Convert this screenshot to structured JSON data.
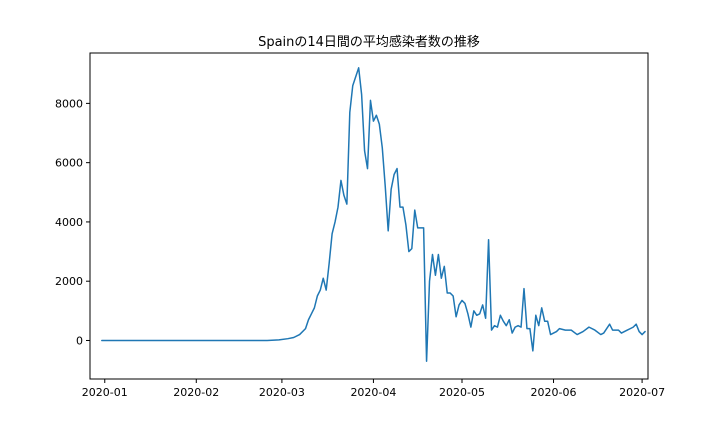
{
  "chart_data": {
    "type": "line",
    "title": "Spainの14日間の平均感染者数の推移",
    "xlabel": "",
    "ylabel": "",
    "xlim": [
      "2019-12-27",
      "2020-07-03"
    ],
    "ylim": [
      -1300,
      9700
    ],
    "grid": false,
    "legend": "none",
    "x_ticks": [
      {
        "date": "2020-01-01",
        "label": "2020-01"
      },
      {
        "date": "2020-02-01",
        "label": "2020-02"
      },
      {
        "date": "2020-03-01",
        "label": "2020-03"
      },
      {
        "date": "2020-04-01",
        "label": "2020-04"
      },
      {
        "date": "2020-05-01",
        "label": "2020-05"
      },
      {
        "date": "2020-06-01",
        "label": "2020-06"
      },
      {
        "date": "2020-07-01",
        "label": "2020-07"
      }
    ],
    "y_ticks": [
      0,
      2000,
      4000,
      6000,
      8000
    ],
    "series": [
      {
        "color": "#1f77b4",
        "points": [
          [
            "2019-12-31",
            0
          ],
          [
            "2020-01-15",
            0
          ],
          [
            "2020-02-01",
            0
          ],
          [
            "2020-02-15",
            0
          ],
          [
            "2020-02-25",
            0
          ],
          [
            "2020-02-29",
            20
          ],
          [
            "2020-03-03",
            60
          ],
          [
            "2020-03-05",
            100
          ],
          [
            "2020-03-07",
            200
          ],
          [
            "2020-03-09",
            400
          ],
          [
            "2020-03-10",
            700
          ],
          [
            "2020-03-11",
            900
          ],
          [
            "2020-03-12",
            1100
          ],
          [
            "2020-03-13",
            1500
          ],
          [
            "2020-03-14",
            1700
          ],
          [
            "2020-03-15",
            2100
          ],
          [
            "2020-03-16",
            1700
          ],
          [
            "2020-03-17",
            2600
          ],
          [
            "2020-03-18",
            3600
          ],
          [
            "2020-03-19",
            4000
          ],
          [
            "2020-03-20",
            4500
          ],
          [
            "2020-03-21",
            5400
          ],
          [
            "2020-03-22",
            4900
          ],
          [
            "2020-03-23",
            4600
          ],
          [
            "2020-03-24",
            7700
          ],
          [
            "2020-03-25",
            8600
          ],
          [
            "2020-03-26",
            8900
          ],
          [
            "2020-03-27",
            9200
          ],
          [
            "2020-03-28",
            8300
          ],
          [
            "2020-03-29",
            6400
          ],
          [
            "2020-03-30",
            5800
          ],
          [
            "2020-03-31",
            8100
          ],
          [
            "2020-04-01",
            7400
          ],
          [
            "2020-04-02",
            7600
          ],
          [
            "2020-04-03",
            7300
          ],
          [
            "2020-04-04",
            6500
          ],
          [
            "2020-04-05",
            5200
          ],
          [
            "2020-04-06",
            3700
          ],
          [
            "2020-04-07",
            5100
          ],
          [
            "2020-04-08",
            5600
          ],
          [
            "2020-04-09",
            5800
          ],
          [
            "2020-04-10",
            4500
          ],
          [
            "2020-04-11",
            4500
          ],
          [
            "2020-04-12",
            3900
          ],
          [
            "2020-04-13",
            3000
          ],
          [
            "2020-04-14",
            3100
          ],
          [
            "2020-04-15",
            4400
          ],
          [
            "2020-04-16",
            3800
          ],
          [
            "2020-04-17",
            3800
          ],
          [
            "2020-04-18",
            3800
          ],
          [
            "2020-04-19",
            -700
          ],
          [
            "2020-04-20",
            2000
          ],
          [
            "2020-04-21",
            2900
          ],
          [
            "2020-04-22",
            2200
          ],
          [
            "2020-04-23",
            2900
          ],
          [
            "2020-04-24",
            2100
          ],
          [
            "2020-04-25",
            2500
          ],
          [
            "2020-04-26",
            1600
          ],
          [
            "2020-04-27",
            1600
          ],
          [
            "2020-04-28",
            1500
          ],
          [
            "2020-04-29",
            800
          ],
          [
            "2020-04-30",
            1200
          ],
          [
            "2020-05-01",
            1350
          ],
          [
            "2020-05-02",
            1250
          ],
          [
            "2020-05-03",
            900
          ],
          [
            "2020-05-04",
            450
          ],
          [
            "2020-05-05",
            1000
          ],
          [
            "2020-05-06",
            850
          ],
          [
            "2020-05-07",
            900
          ],
          [
            "2020-05-08",
            1200
          ],
          [
            "2020-05-09",
            750
          ],
          [
            "2020-05-10",
            3400
          ],
          [
            "2020-05-11",
            350
          ],
          [
            "2020-05-12",
            500
          ],
          [
            "2020-05-13",
            450
          ],
          [
            "2020-05-14",
            850
          ],
          [
            "2020-05-15",
            650
          ],
          [
            "2020-05-16",
            500
          ],
          [
            "2020-05-17",
            700
          ],
          [
            "2020-05-18",
            250
          ],
          [
            "2020-05-19",
            450
          ],
          [
            "2020-05-20",
            500
          ],
          [
            "2020-05-21",
            450
          ],
          [
            "2020-05-22",
            1750
          ],
          [
            "2020-05-23",
            400
          ],
          [
            "2020-05-24",
            400
          ],
          [
            "2020-05-25",
            -350
          ],
          [
            "2020-05-26",
            850
          ],
          [
            "2020-05-27",
            500
          ],
          [
            "2020-05-28",
            1100
          ],
          [
            "2020-05-29",
            650
          ],
          [
            "2020-05-30",
            650
          ],
          [
            "2020-05-31",
            200
          ],
          [
            "2020-06-01",
            250
          ],
          [
            "2020-06-02",
            300
          ],
          [
            "2020-06-03",
            400
          ],
          [
            "2020-06-05",
            350
          ],
          [
            "2020-06-07",
            350
          ],
          [
            "2020-06-09",
            200
          ],
          [
            "2020-06-11",
            300
          ],
          [
            "2020-06-13",
            450
          ],
          [
            "2020-06-15",
            350
          ],
          [
            "2020-06-17",
            200
          ],
          [
            "2020-06-18",
            250
          ],
          [
            "2020-06-20",
            550
          ],
          [
            "2020-06-21",
            350
          ],
          [
            "2020-06-23",
            350
          ],
          [
            "2020-06-24",
            250
          ],
          [
            "2020-06-25",
            300
          ],
          [
            "2020-06-26",
            350
          ],
          [
            "2020-06-27",
            400
          ],
          [
            "2020-06-28",
            450
          ],
          [
            "2020-06-29",
            550
          ],
          [
            "2020-06-30",
            300
          ],
          [
            "2020-07-01",
            200
          ],
          [
            "2020-07-02",
            300
          ]
        ]
      }
    ]
  }
}
